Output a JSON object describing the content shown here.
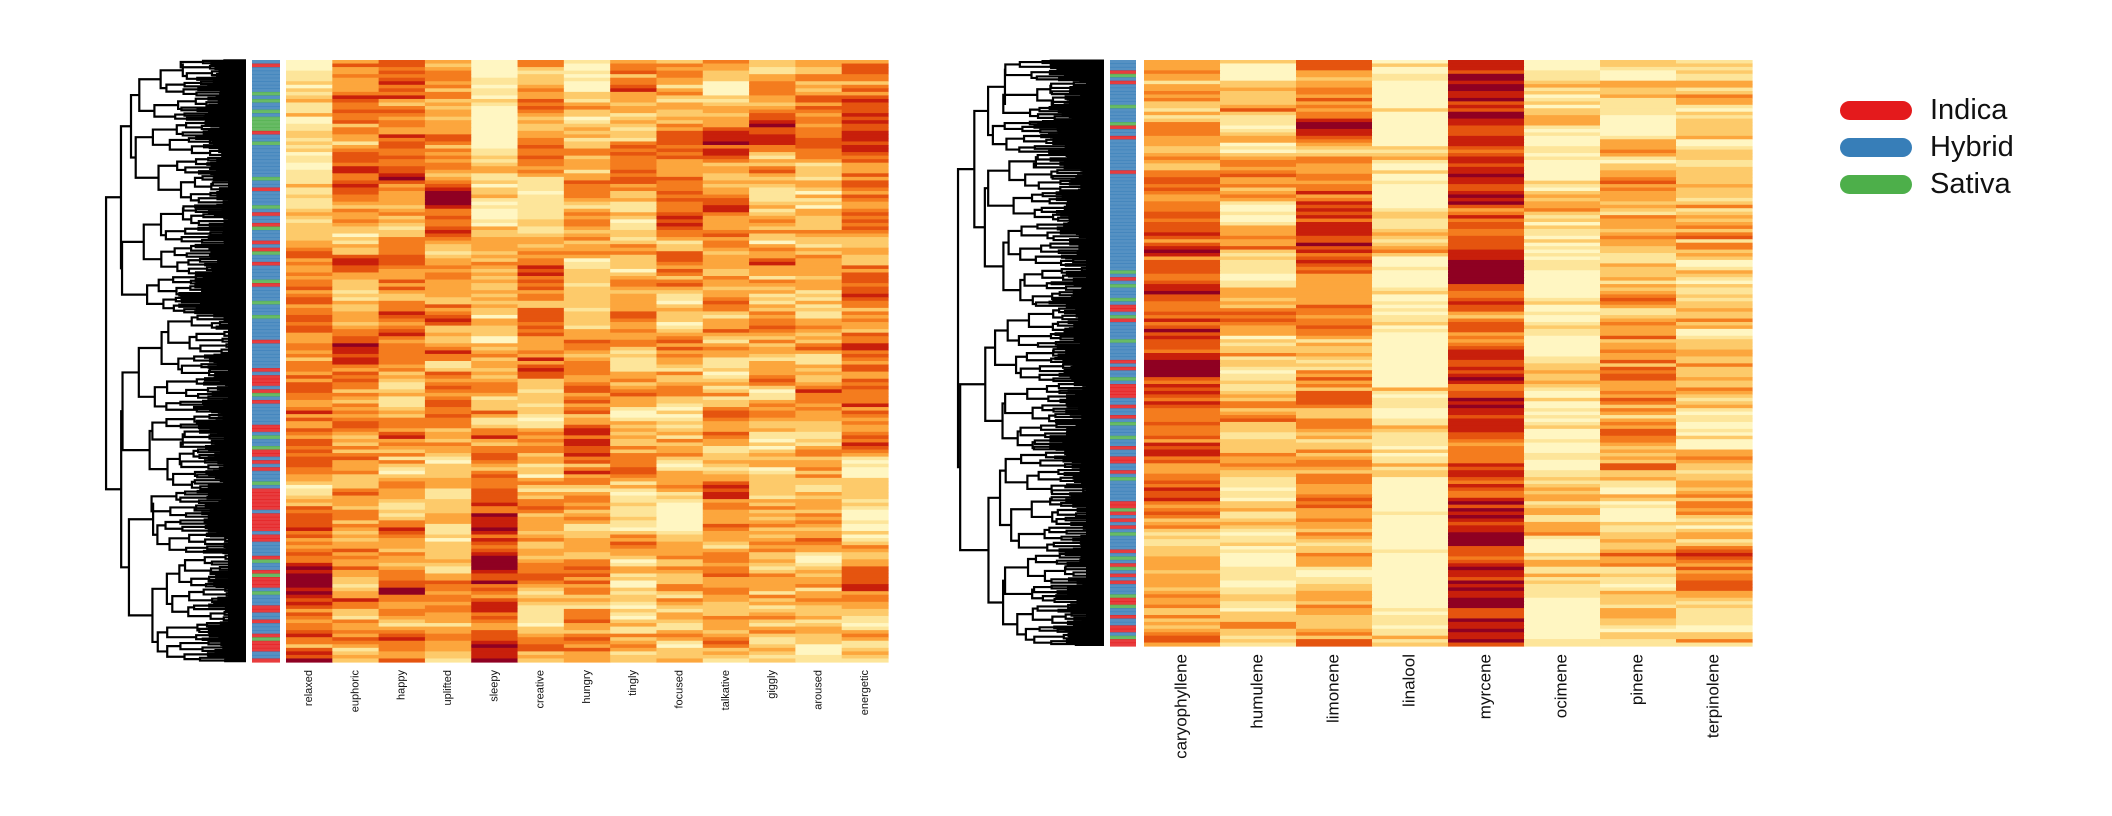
{
  "legend": {
    "items": [
      {
        "label": "Indica",
        "color": "#e41a1c"
      },
      {
        "label": "Hybrid",
        "color": "#377eb8"
      },
      {
        "label": "Sativa",
        "color": "#4daf4a"
      }
    ]
  },
  "colormap": [
    "#fff6c2",
    "#fde59a",
    "#fdca6a",
    "#fca63d",
    "#f47c1e",
    "#e5540f",
    "#c81f0b",
    "#8f0022"
  ],
  "chart_data": [
    {
      "type": "heatmap",
      "title": "",
      "xlabel": "",
      "ylabel": "",
      "row_annotation": "strain type (Indica / Hybrid / Sativa)",
      "dendrogram": "rows",
      "value_range": [
        0,
        1
      ],
      "columns": [
        "relaxed",
        "euphoric",
        "happy",
        "uplifted",
        "sleepy",
        "creative",
        "hungry",
        "tingly",
        "focused",
        "talkative",
        "giggly",
        "aroused",
        "energetic"
      ],
      "column_means": [
        0.55,
        0.5,
        0.48,
        0.5,
        0.42,
        0.45,
        0.35,
        0.4,
        0.38,
        0.48,
        0.38,
        0.4,
        0.52
      ],
      "row_blocks": [
        {
          "rows": "top",
          "type": "Hybrid",
          "values": [
            0.1,
            0.55,
            0.5,
            0.6,
            0.15,
            0.5,
            0.25,
            0.45,
            0.4,
            0.55,
            0.35,
            0.45,
            0.7
          ]
        },
        {
          "rows": "upper-middle",
          "type": "Hybrid",
          "values": [
            0.25,
            0.55,
            0.55,
            0.55,
            0.2,
            0.6,
            0.2,
            0.35,
            0.6,
            0.5,
            0.45,
            0.35,
            0.65
          ]
        },
        {
          "rows": "middle",
          "type": "Mixed",
          "values": [
            0.55,
            0.45,
            0.45,
            0.4,
            0.5,
            0.35,
            0.6,
            0.35,
            0.3,
            0.4,
            0.35,
            0.45,
            0.4
          ]
        },
        {
          "rows": "bottom",
          "type": "Indica",
          "values": [
            0.75,
            0.5,
            0.45,
            0.35,
            0.8,
            0.3,
            0.5,
            0.4,
            0.25,
            0.4,
            0.35,
            0.4,
            0.3
          ]
        }
      ]
    },
    {
      "type": "heatmap",
      "title": "",
      "xlabel": "",
      "ylabel": "",
      "row_annotation": "strain type (Indica / Hybrid / Sativa)",
      "dendrogram": "rows",
      "value_range": [
        0,
        1
      ],
      "columns": [
        "caryophyllene",
        "humulene",
        "limonene",
        "linalool",
        "myrcene",
        "ocimene",
        "pinene",
        "terpinolene"
      ],
      "column_means": [
        0.55,
        0.25,
        0.55,
        0.15,
        0.75,
        0.12,
        0.35,
        0.3
      ],
      "row_blocks": [
        {
          "rows": "top",
          "type": "Hybrid",
          "values": [
            0.55,
            0.25,
            0.55,
            0.15,
            0.9,
            0.15,
            0.35,
            0.3
          ]
        },
        {
          "rows": "upper-middle",
          "type": "Hybrid",
          "values": [
            0.75,
            0.25,
            0.8,
            0.15,
            0.6,
            0.1,
            0.4,
            0.25
          ]
        },
        {
          "rows": "middle",
          "type": "Mixed",
          "values": [
            0.85,
            0.25,
            0.5,
            0.15,
            0.7,
            0.1,
            0.45,
            0.2
          ]
        },
        {
          "rows": "bottom",
          "type": "Mixed",
          "values": [
            0.45,
            0.25,
            0.5,
            0.1,
            0.95,
            0.1,
            0.3,
            0.55
          ]
        }
      ]
    }
  ]
}
